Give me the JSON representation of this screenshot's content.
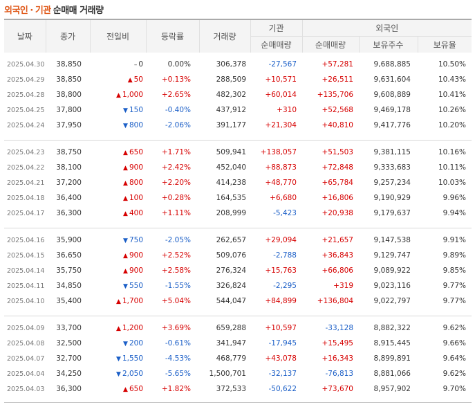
{
  "title": {
    "foreign": "외국인",
    "sep": "·",
    "inst": "기관",
    "rest": "순매매 거래량"
  },
  "headers": {
    "date": "날짜",
    "close": "종가",
    "diff": "전일비",
    "rate": "등락률",
    "volume": "거래량",
    "inst_group": "기관",
    "inst_net": "순매매량",
    "foreign_group": "외국인",
    "foreign_net": "순매매량",
    "foreign_hold": "보유주수",
    "foreign_ratio": "보유율"
  },
  "groups": [
    {
      "rows": [
        {
          "date": "2025.04.30",
          "close": "38,850",
          "dir": "flat",
          "diff": "0",
          "rate": "0.00%",
          "volume": "306,378",
          "inst": "-27,567",
          "foreign": "+57,281",
          "hold": "9,688,885",
          "ratio": "10.50%"
        },
        {
          "date": "2025.04.29",
          "close": "38,850",
          "dir": "up",
          "diff": "50",
          "rate": "+0.13%",
          "volume": "288,509",
          "inst": "+10,571",
          "foreign": "+26,511",
          "hold": "9,631,604",
          "ratio": "10.43%"
        },
        {
          "date": "2025.04.28",
          "close": "38,800",
          "dir": "up",
          "diff": "1,000",
          "rate": "+2.65%",
          "volume": "482,302",
          "inst": "+60,014",
          "foreign": "+135,706",
          "hold": "9,608,889",
          "ratio": "10.41%"
        },
        {
          "date": "2025.04.25",
          "close": "37,800",
          "dir": "down",
          "diff": "150",
          "rate": "-0.40%",
          "volume": "437,912",
          "inst": "+310",
          "foreign": "+52,568",
          "hold": "9,469,178",
          "ratio": "10.26%"
        },
        {
          "date": "2025.04.24",
          "close": "37,950",
          "dir": "down",
          "diff": "800",
          "rate": "-2.06%",
          "volume": "391,177",
          "inst": "+21,304",
          "foreign": "+40,810",
          "hold": "9,417,776",
          "ratio": "10.20%"
        }
      ]
    },
    {
      "rows": [
        {
          "date": "2025.04.23",
          "close": "38,750",
          "dir": "up",
          "diff": "650",
          "rate": "+1.71%",
          "volume": "509,941",
          "inst": "+138,057",
          "foreign": "+51,503",
          "hold": "9,381,115",
          "ratio": "10.16%"
        },
        {
          "date": "2025.04.22",
          "close": "38,100",
          "dir": "up",
          "diff": "900",
          "rate": "+2.42%",
          "volume": "452,040",
          "inst": "+88,873",
          "foreign": "+72,848",
          "hold": "9,333,683",
          "ratio": "10.11%"
        },
        {
          "date": "2025.04.21",
          "close": "37,200",
          "dir": "up",
          "diff": "800",
          "rate": "+2.20%",
          "volume": "414,238",
          "inst": "+48,770",
          "foreign": "+65,784",
          "hold": "9,257,234",
          "ratio": "10.03%"
        },
        {
          "date": "2025.04.18",
          "close": "36,400",
          "dir": "up",
          "diff": "100",
          "rate": "+0.28%",
          "volume": "164,535",
          "inst": "+6,680",
          "foreign": "+16,806",
          "hold": "9,190,929",
          "ratio": "9.96%"
        },
        {
          "date": "2025.04.17",
          "close": "36,300",
          "dir": "up",
          "diff": "400",
          "rate": "+1.11%",
          "volume": "208,999",
          "inst": "-5,423",
          "foreign": "+20,938",
          "hold": "9,179,637",
          "ratio": "9.94%"
        }
      ]
    },
    {
      "rows": [
        {
          "date": "2025.04.16",
          "close": "35,900",
          "dir": "down",
          "diff": "750",
          "rate": "-2.05%",
          "volume": "262,657",
          "inst": "+29,094",
          "foreign": "+21,657",
          "hold": "9,147,538",
          "ratio": "9.91%"
        },
        {
          "date": "2025.04.15",
          "close": "36,650",
          "dir": "up",
          "diff": "900",
          "rate": "+2.52%",
          "volume": "509,076",
          "inst": "-2,788",
          "foreign": "+36,843",
          "hold": "9,129,747",
          "ratio": "9.89%"
        },
        {
          "date": "2025.04.14",
          "close": "35,750",
          "dir": "up",
          "diff": "900",
          "rate": "+2.58%",
          "volume": "276,324",
          "inst": "+15,763",
          "foreign": "+66,806",
          "hold": "9,089,922",
          "ratio": "9.85%"
        },
        {
          "date": "2025.04.11",
          "close": "34,850",
          "dir": "down",
          "diff": "550",
          "rate": "-1.55%",
          "volume": "326,824",
          "inst": "-2,295",
          "foreign": "+319",
          "hold": "9,023,116",
          "ratio": "9.77%"
        },
        {
          "date": "2025.04.10",
          "close": "35,400",
          "dir": "up",
          "diff": "1,700",
          "rate": "+5.04%",
          "volume": "544,047",
          "inst": "+84,899",
          "foreign": "+136,804",
          "hold": "9,022,797",
          "ratio": "9.77%"
        }
      ]
    },
    {
      "rows": [
        {
          "date": "2025.04.09",
          "close": "33,700",
          "dir": "up",
          "diff": "1,200",
          "rate": "+3.69%",
          "volume": "659,288",
          "inst": "+10,597",
          "foreign": "-33,128",
          "hold": "8,882,322",
          "ratio": "9.62%"
        },
        {
          "date": "2025.04.08",
          "close": "32,500",
          "dir": "down",
          "diff": "200",
          "rate": "-0.61%",
          "volume": "341,947",
          "inst": "-17,945",
          "foreign": "+15,495",
          "hold": "8,915,445",
          "ratio": "9.66%"
        },
        {
          "date": "2025.04.07",
          "close": "32,700",
          "dir": "down",
          "diff": "1,550",
          "rate": "-4.53%",
          "volume": "468,779",
          "inst": "+43,078",
          "foreign": "+16,343",
          "hold": "8,899,891",
          "ratio": "9.64%"
        },
        {
          "date": "2025.04.04",
          "close": "34,250",
          "dir": "down",
          "diff": "2,050",
          "rate": "-5.65%",
          "volume": "1,500,701",
          "inst": "-32,137",
          "foreign": "-76,813",
          "hold": "8,881,066",
          "ratio": "9.62%"
        },
        {
          "date": "2025.04.03",
          "close": "36,300",
          "dir": "up",
          "diff": "650",
          "rate": "+1.82%",
          "volume": "372,533",
          "inst": "-50,622",
          "foreign": "+73,670",
          "hold": "8,957,902",
          "ratio": "9.70%"
        }
      ]
    }
  ],
  "glyphs": {
    "up": "▲",
    "down": "▼",
    "flat": "–"
  },
  "colors": {
    "title_accent": "#e05a1b",
    "up": "#d60000",
    "down": "#1a5ec7"
  }
}
